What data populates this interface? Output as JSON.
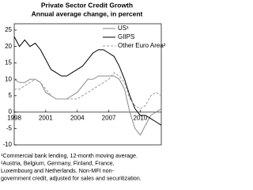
{
  "chart_data": {
    "type": "line",
    "title": "Private Sector Credit Growth",
    "subtitle": "Annual average change, in percent",
    "x": [
      1998,
      1998.5,
      1999,
      1999.5,
      2000,
      2000.5,
      2001,
      2001.5,
      2002,
      2002.5,
      2003,
      2003.5,
      2004,
      2004.5,
      2005,
      2005.5,
      2006,
      2006.5,
      2007,
      2007.5,
      2008,
      2008.5,
      2009,
      2009.5,
      2010,
      2010.5,
      2011,
      2011.5,
      2012
    ],
    "series": [
      {
        "name": "US¹",
        "color": "#8a8a8a",
        "dashed": false,
        "values": [
          10,
          9,
          9,
          10,
          10,
          9,
          6,
          5,
          4,
          4,
          4,
          5,
          6,
          8,
          10,
          10,
          11,
          11,
          11,
          11,
          10,
          7,
          0,
          -5,
          -7,
          -4,
          -1,
          0,
          1
        ]
      },
      {
        "name": "GIIPS",
        "color": "#000000",
        "dashed": false,
        "values": [
          23,
          20,
          22,
          20,
          21,
          19,
          16,
          13,
          12,
          11,
          11,
          12,
          13,
          14,
          16,
          18,
          19,
          19,
          18,
          17,
          14,
          10,
          5,
          1,
          -1,
          -1,
          -2,
          -3,
          -4
        ]
      },
      {
        "name": "Other Euro Area²",
        "color": "#9a9a9a",
        "dashed": true,
        "values": [
          7,
          7,
          8,
          9,
          10,
          9,
          7,
          5,
          4,
          4,
          4,
          4,
          4,
          5,
          6,
          7,
          8,
          9,
          10,
          12,
          11,
          9,
          4,
          2,
          1,
          2,
          5,
          6,
          5
        ]
      }
    ],
    "xlim": [
      1998,
      2012
    ],
    "xticks": [
      1998,
      2001,
      2004,
      2007,
      2010
    ],
    "ylim": [
      -10,
      25
    ],
    "yticks": [
      -10,
      -5,
      0,
      5,
      10,
      15,
      20,
      25
    ],
    "legend": "top-right",
    "notes": [
      "¹Commercial bank lending, 12-month moving average.",
      "²Austria, Belgium, Germany, Finland, France,",
      "Luxembourg and Netherlands. Non-MFI non-",
      "government credit, adjusted for sales and securitization."
    ]
  }
}
